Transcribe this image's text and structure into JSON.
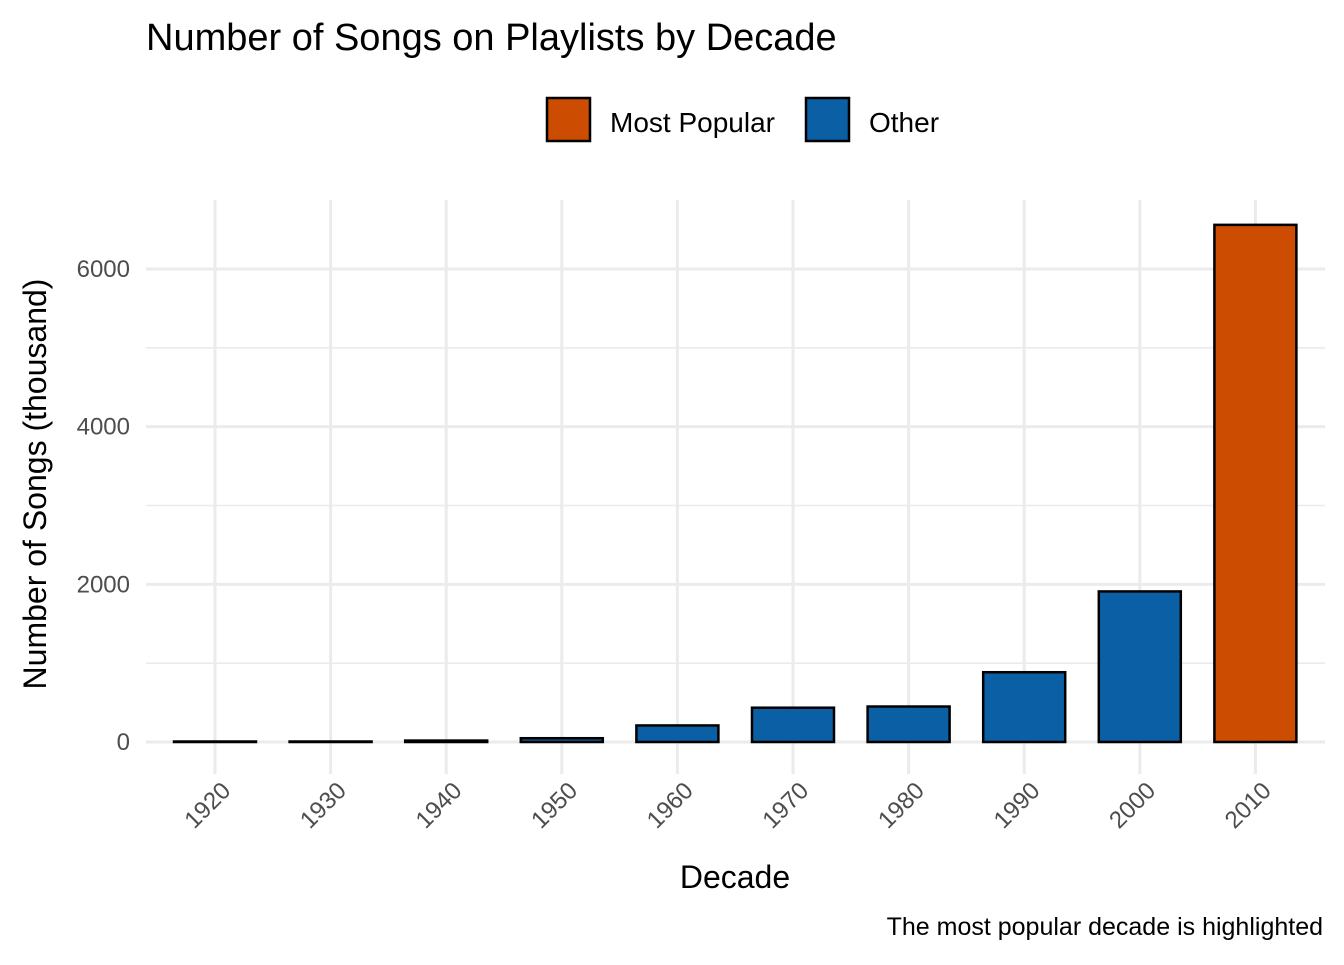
{
  "chart_data": {
    "type": "bar",
    "title": "Number of Songs on Playlists by Decade",
    "xlabel": "Decade",
    "ylabel": "Number of Songs (thousand)",
    "caption": "The most popular decade is highlighted",
    "categories": [
      "1920",
      "1930",
      "1940",
      "1950",
      "1960",
      "1970",
      "1980",
      "1990",
      "2000",
      "2010"
    ],
    "values": [
      3,
      5,
      18,
      48,
      210,
      435,
      450,
      885,
      1910,
      6560
    ],
    "groups": [
      "Other",
      "Other",
      "Other",
      "Other",
      "Other",
      "Other",
      "Other",
      "Other",
      "Other",
      "Most Popular"
    ],
    "ylim": [
      0,
      6900
    ],
    "yticks": [
      0,
      2000,
      4000,
      6000
    ],
    "yticks_minor": [
      1000,
      3000,
      5000
    ],
    "grid": true,
    "legend": {
      "position": "top",
      "entries": [
        {
          "label": "Most Popular",
          "color": "#cc4c02"
        },
        {
          "label": "Other",
          "color": "#0b5fa5"
        }
      ]
    },
    "colors": {
      "Most Popular": "#cc4c02",
      "Other": "#0b5fa5"
    }
  }
}
